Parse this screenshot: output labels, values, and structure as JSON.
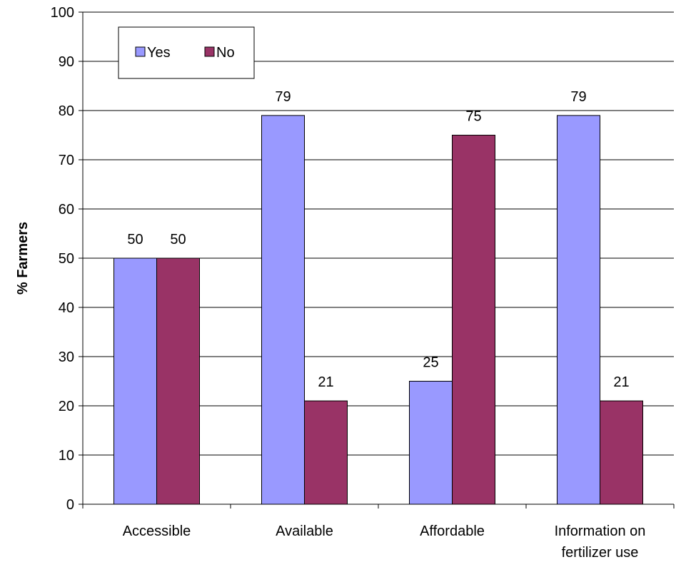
{
  "chart_data": {
    "type": "bar",
    "title": "",
    "xlabel": "",
    "ylabel": "% Farmers",
    "ylim": [
      0,
      100
    ],
    "ytick_step": 10,
    "categories": [
      "Accessible",
      "Available",
      "Affordable",
      "Information on fertilizer use"
    ],
    "series": [
      {
        "name": "Yes",
        "values": [
          50,
          79,
          25,
          79
        ],
        "color": "#9999ff"
      },
      {
        "name": "No",
        "values": [
          50,
          21,
          75,
          21
        ],
        "color": "#993366"
      }
    ],
    "grid": "horizontal",
    "legend": "top-left, inside plot"
  }
}
